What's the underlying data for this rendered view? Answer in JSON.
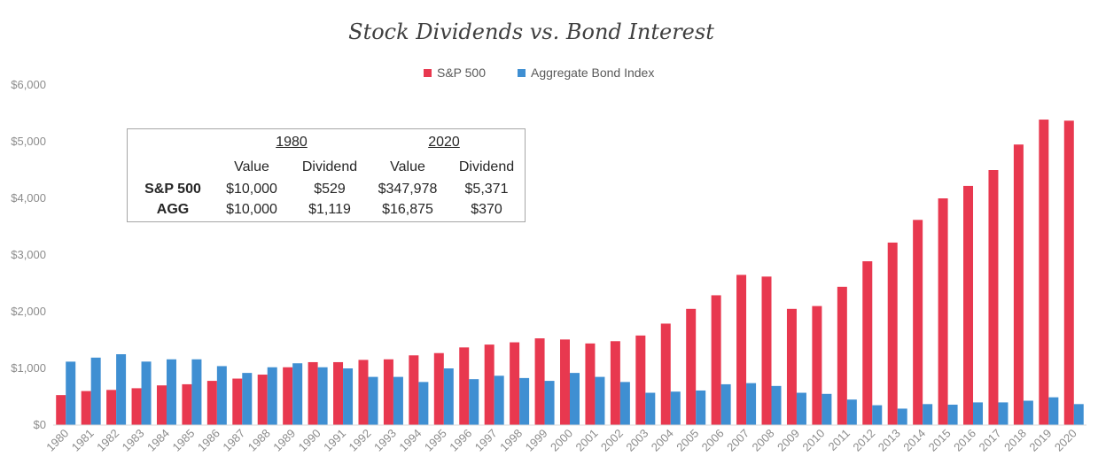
{
  "chart_data": {
    "type": "bar",
    "title": "Stock Dividends vs. Bond Interest",
    "categories": [
      "1980",
      "1981",
      "1982",
      "1983",
      "1984",
      "1985",
      "1986",
      "1987",
      "1988",
      "1989",
      "1990",
      "1991",
      "1992",
      "1993",
      "1994",
      "1995",
      "1996",
      "1997",
      "1998",
      "1999",
      "2000",
      "2001",
      "2002",
      "2003",
      "2004",
      "2005",
      "2006",
      "2007",
      "2008",
      "2009",
      "2010",
      "2011",
      "2012",
      "2013",
      "2014",
      "2015",
      "2016",
      "2017",
      "2018",
      "2019",
      "2020"
    ],
    "series": [
      {
        "name": "S&P 500",
        "color": "#e8384f",
        "values": [
          529,
          600,
          620,
          650,
          700,
          720,
          780,
          820,
          890,
          1020,
          1110,
          1110,
          1150,
          1160,
          1230,
          1270,
          1370,
          1420,
          1460,
          1530,
          1510,
          1440,
          1480,
          1580,
          1790,
          2050,
          2290,
          2650,
          2620,
          2050,
          2100,
          2440,
          2890,
          3220,
          3620,
          4000,
          4220,
          4500,
          4950,
          5390,
          5371
        ]
      },
      {
        "name": "Aggregate Bond Index",
        "color": "#3f8fd2",
        "values": [
          1119,
          1190,
          1250,
          1120,
          1160,
          1160,
          1040,
          920,
          1020,
          1090,
          1020,
          1000,
          850,
          850,
          760,
          1000,
          810,
          870,
          830,
          780,
          920,
          850,
          760,
          570,
          590,
          610,
          720,
          740,
          690,
          570,
          550,
          450,
          350,
          290,
          370,
          360,
          400,
          400,
          430,
          490,
          370
        ]
      }
    ],
    "ylim": [
      0,
      6000
    ],
    "yticks": [
      0,
      1000,
      2000,
      3000,
      4000,
      5000,
      6000
    ],
    "ytick_labels": [
      "$0",
      "$1,000",
      "$2,000",
      "$3,000",
      "$4,000",
      "$5,000",
      "$6,000"
    ],
    "legend_position": "top-center",
    "grid": false
  },
  "info_table": {
    "year_1980": "1980",
    "year_2020": "2020",
    "col_value_1": "Value",
    "col_dividend_1": "Dividend",
    "col_value_2": "Value",
    "col_dividend_2": "Dividend",
    "rows": [
      {
        "label": "S&P 500",
        "v1980": "$10,000",
        "d1980": "$529",
        "v2020": "$347,978",
        "d2020": "$5,371"
      },
      {
        "label": "AGG",
        "v1980": "$10,000",
        "d1980": "$1,119",
        "v2020": "$16,875",
        "d2020": "$370"
      }
    ]
  }
}
